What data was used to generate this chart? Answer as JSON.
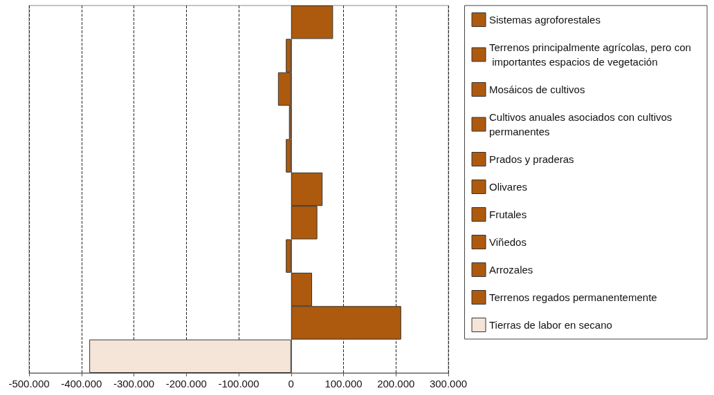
{
  "chart_data": {
    "type": "bar",
    "orientation": "horizontal",
    "stacked": true,
    "categories": [
      null,
      null,
      null,
      null,
      null,
      null,
      null,
      null,
      null,
      null,
      null
    ],
    "series": [
      {
        "name": "Sistemas agroforestales",
        "color": "#ad5a0f",
        "values": [
          80000,
          null,
          null,
          null,
          null,
          null,
          null,
          null,
          null,
          null,
          null
        ]
      },
      {
        "name": "Terrenos principalmente agrícolas, pero con importantes espacios de vegetación",
        "color": "#ad5a0f",
        "values": [
          null,
          -10000,
          null,
          null,
          null,
          null,
          null,
          null,
          null,
          null,
          null
        ]
      },
      {
        "name": "Mosáicos de cultivos",
        "color": "#ad5a0f",
        "values": [
          null,
          null,
          -25000,
          null,
          null,
          null,
          null,
          null,
          null,
          null,
          null
        ]
      },
      {
        "name": "Cultivos anuales asociados con cultivos permanentes",
        "color": "#ad5a0f",
        "values": [
          null,
          null,
          null,
          -4000,
          null,
          null,
          null,
          null,
          null,
          null,
          null
        ]
      },
      {
        "name": "Prados y praderas",
        "color": "#ad5a0f",
        "values": [
          null,
          null,
          null,
          null,
          -10000,
          null,
          null,
          null,
          null,
          null,
          null
        ]
      },
      {
        "name": "Olivares",
        "color": "#ad5a0f",
        "values": [
          null,
          null,
          null,
          null,
          null,
          60000,
          null,
          null,
          null,
          null,
          null
        ]
      },
      {
        "name": "Frutales",
        "color": "#ad5a0f",
        "values": [
          null,
          null,
          null,
          null,
          null,
          null,
          50000,
          null,
          null,
          null,
          null
        ]
      },
      {
        "name": "Viñedos",
        "color": "#ad5a0f",
        "values": [
          null,
          null,
          null,
          null,
          null,
          null,
          null,
          -10000,
          null,
          null,
          null
        ]
      },
      {
        "name": "Arrozales",
        "color": "#ad5a0f",
        "values": [
          null,
          null,
          null,
          null,
          null,
          null,
          null,
          null,
          40000,
          null,
          null
        ]
      },
      {
        "name": "Terrenos regados permanentemente",
        "color": "#ad5a0f",
        "values": [
          null,
          null,
          null,
          null,
          null,
          null,
          null,
          null,
          null,
          210000,
          null
        ]
      },
      {
        "name": "Tierras de labor en secano",
        "color": "#f5e4d8",
        "values": [
          null,
          null,
          null,
          null,
          null,
          null,
          null,
          null,
          null,
          null,
          -385000
        ]
      }
    ],
    "xlim": [
      -500000,
      300000
    ],
    "xticks": [
      {
        "value": -500000,
        "label": "-500.000"
      },
      {
        "value": -400000,
        "label": "-400.000"
      },
      {
        "value": -300000,
        "label": "-300.000"
      },
      {
        "value": -200000,
        "label": "-200.000"
      },
      {
        "value": -100000,
        "label": "-100.000"
      },
      0,
      {
        "value": 100000,
        "label": "100.000"
      },
      {
        "value": 200000,
        "label": "200.000"
      },
      {
        "value": 300000,
        "label": "300.000"
      }
    ],
    "grid": "x",
    "legend": "right",
    "tick_labels": "x"
  }
}
